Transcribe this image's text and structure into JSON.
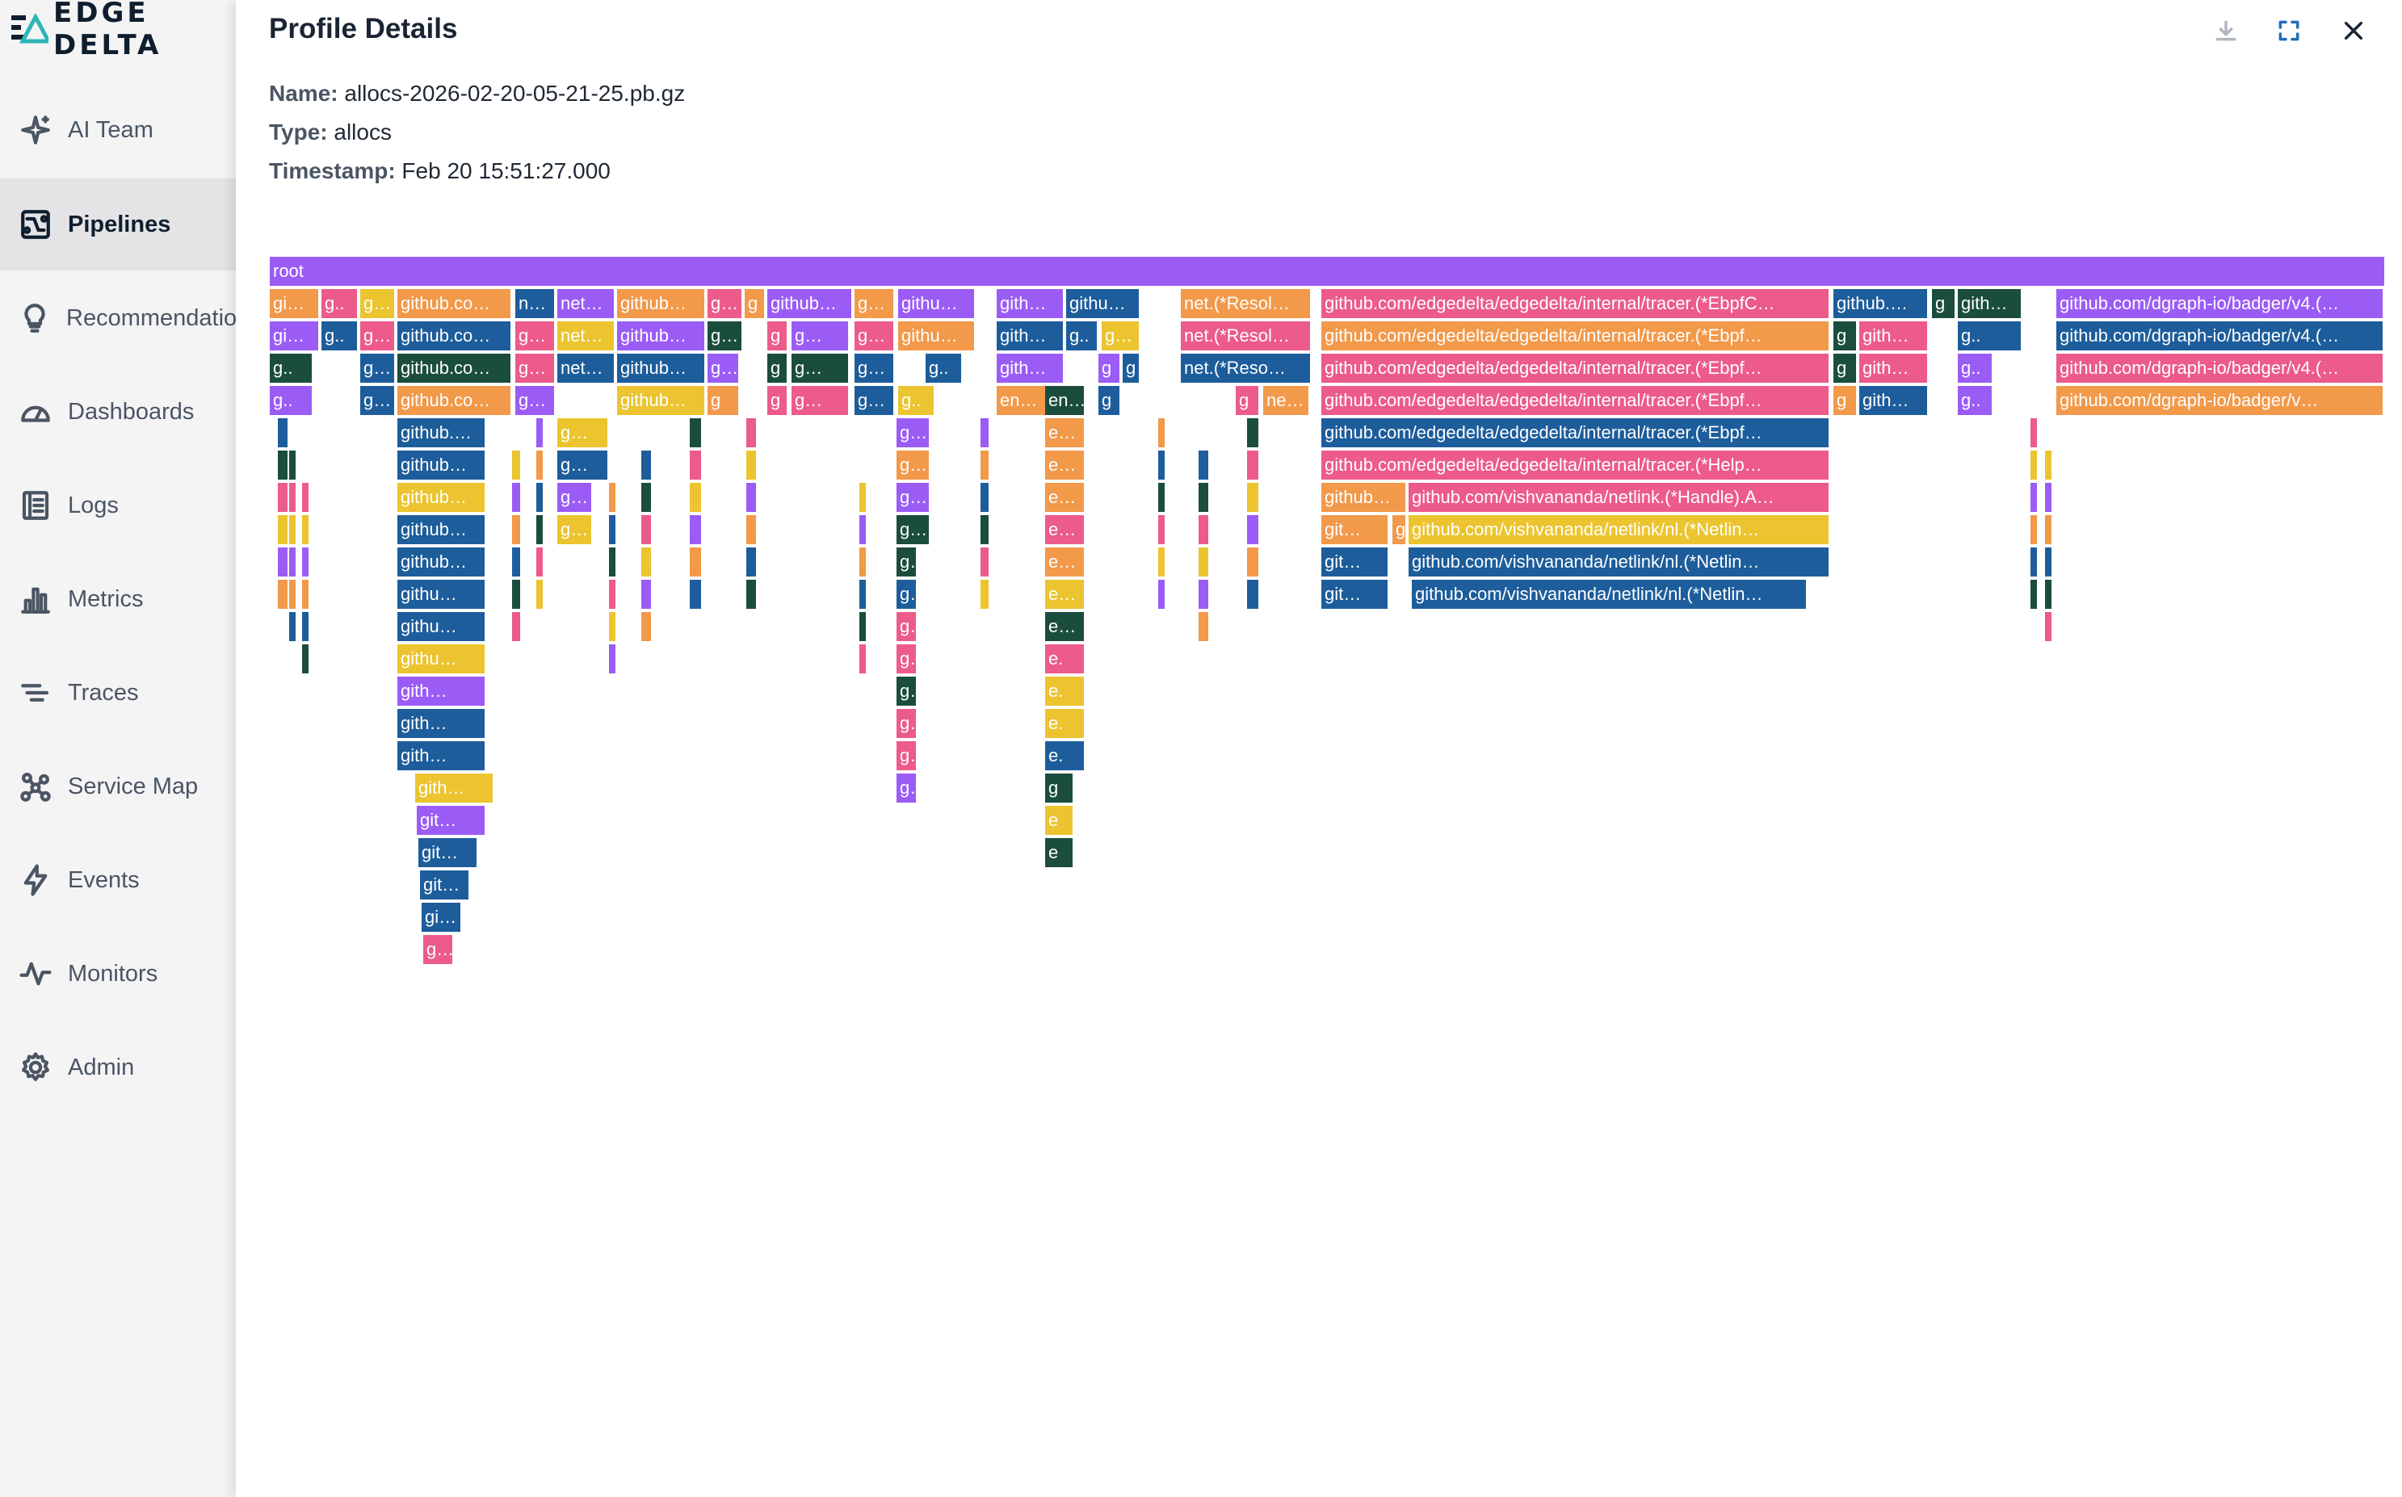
{
  "brand": {
    "name": "EDGE DELTA"
  },
  "sidebar": {
    "items": [
      {
        "label": "AI Team",
        "icon": "sparkle-icon",
        "active": false
      },
      {
        "label": "Pipelines",
        "icon": "pipelines-icon",
        "active": true
      },
      {
        "label": "Recommendations",
        "icon": "lightbulb-icon",
        "active": false
      },
      {
        "label": "Dashboards",
        "icon": "gauge-icon",
        "active": false
      },
      {
        "label": "Logs",
        "icon": "logs-icon",
        "active": false
      },
      {
        "label": "Metrics",
        "icon": "bar-chart-icon",
        "active": false
      },
      {
        "label": "Traces",
        "icon": "traces-icon",
        "active": false
      },
      {
        "label": "Service Map",
        "icon": "service-map-icon",
        "active": false
      },
      {
        "label": "Events",
        "icon": "lightning-icon",
        "active": false
      },
      {
        "label": "Monitors",
        "icon": "pulse-icon",
        "active": false
      },
      {
        "label": "Admin",
        "icon": "gear-icon",
        "active": false
      }
    ]
  },
  "panel": {
    "title": "Profile Details",
    "name_label": "Name:",
    "name_value": "allocs-2026-02-20-05-21-25.pb.gz",
    "type_label": "Type:",
    "type_value": "allocs",
    "timestamp_label": "Timestamp:",
    "timestamp_value": "Feb 20 15:51:27.000",
    "actions": [
      "download-icon",
      "expand-icon",
      "close-icon"
    ]
  },
  "colors": {
    "purple": "#9b5cf6",
    "orange": "#f2994a",
    "yellow": "#ebc42f",
    "navy": "#1d5d9b",
    "green": "#1b4d3e",
    "pink": "#ec5b8a",
    "accent": "#8b5cf6"
  },
  "flame": {
    "root_label": "root",
    "labels": {
      "c1": "gi…",
      "c2": "g..",
      "c3": "g…",
      "c4": "github.co…",
      "c5": "n…",
      "c6": "net…",
      "c7": "github…",
      "c8": "g…",
      "c9": "g",
      "c10": "github…",
      "c11": "g…",
      "c12": "githu…",
      "c13": "gith…",
      "c14": "githu…",
      "c15": "net.(*Resol…",
      "c16": "github.com/edgedelta/edgedelta/internal/tracer.(*EbpfC…",
      "c17": "github.…",
      "c18": "g",
      "c19": "gith…",
      "c20": "github.com/dgraph-io/badger/v4.(…",
      "d16": "github.com/edgedelta/edgedelta/internal/tracer.(*Ebpf…",
      "d20": "github.com/dgraph-io/badger/v4.(…",
      "e20": "github.com/dgraph-io/badger/v4.(…",
      "f20": "github.com/dgraph-io/badger/v…",
      "r1": "github.com/edgedelta/edgedelta/internal/tracer.(*Ebpf…",
      "r2": "github.com/edgedelta/edgedelta/internal/tracer.(*Help…",
      "r3a": "github…",
      "r3b": "github.com/vishvananda/netlink.(*Handle).A…",
      "r4a": "git…",
      "r4b": "github.com/vishvananda/netlink/nl.(*Netlin…",
      "r5a": "git…",
      "r5b": "github.com/vishvananda/netlink/nl.(*Netlin…",
      "r6a": "git…",
      "r6b": "github.com/vishvananda/netlink/nl.(*Netlin…",
      "p1": "net.(*Resol…",
      "p2": "net.(*Reso…",
      "p3": "ne…",
      "s1": "github.…",
      "s2": "github…",
      "s3": "githu…",
      "s4": "gith…",
      "s5": "git…",
      "s6": "gi…",
      "s7": "g…",
      "t1": "en…",
      "t2": "e…",
      "t3": "e.",
      "t4": "e"
    }
  }
}
